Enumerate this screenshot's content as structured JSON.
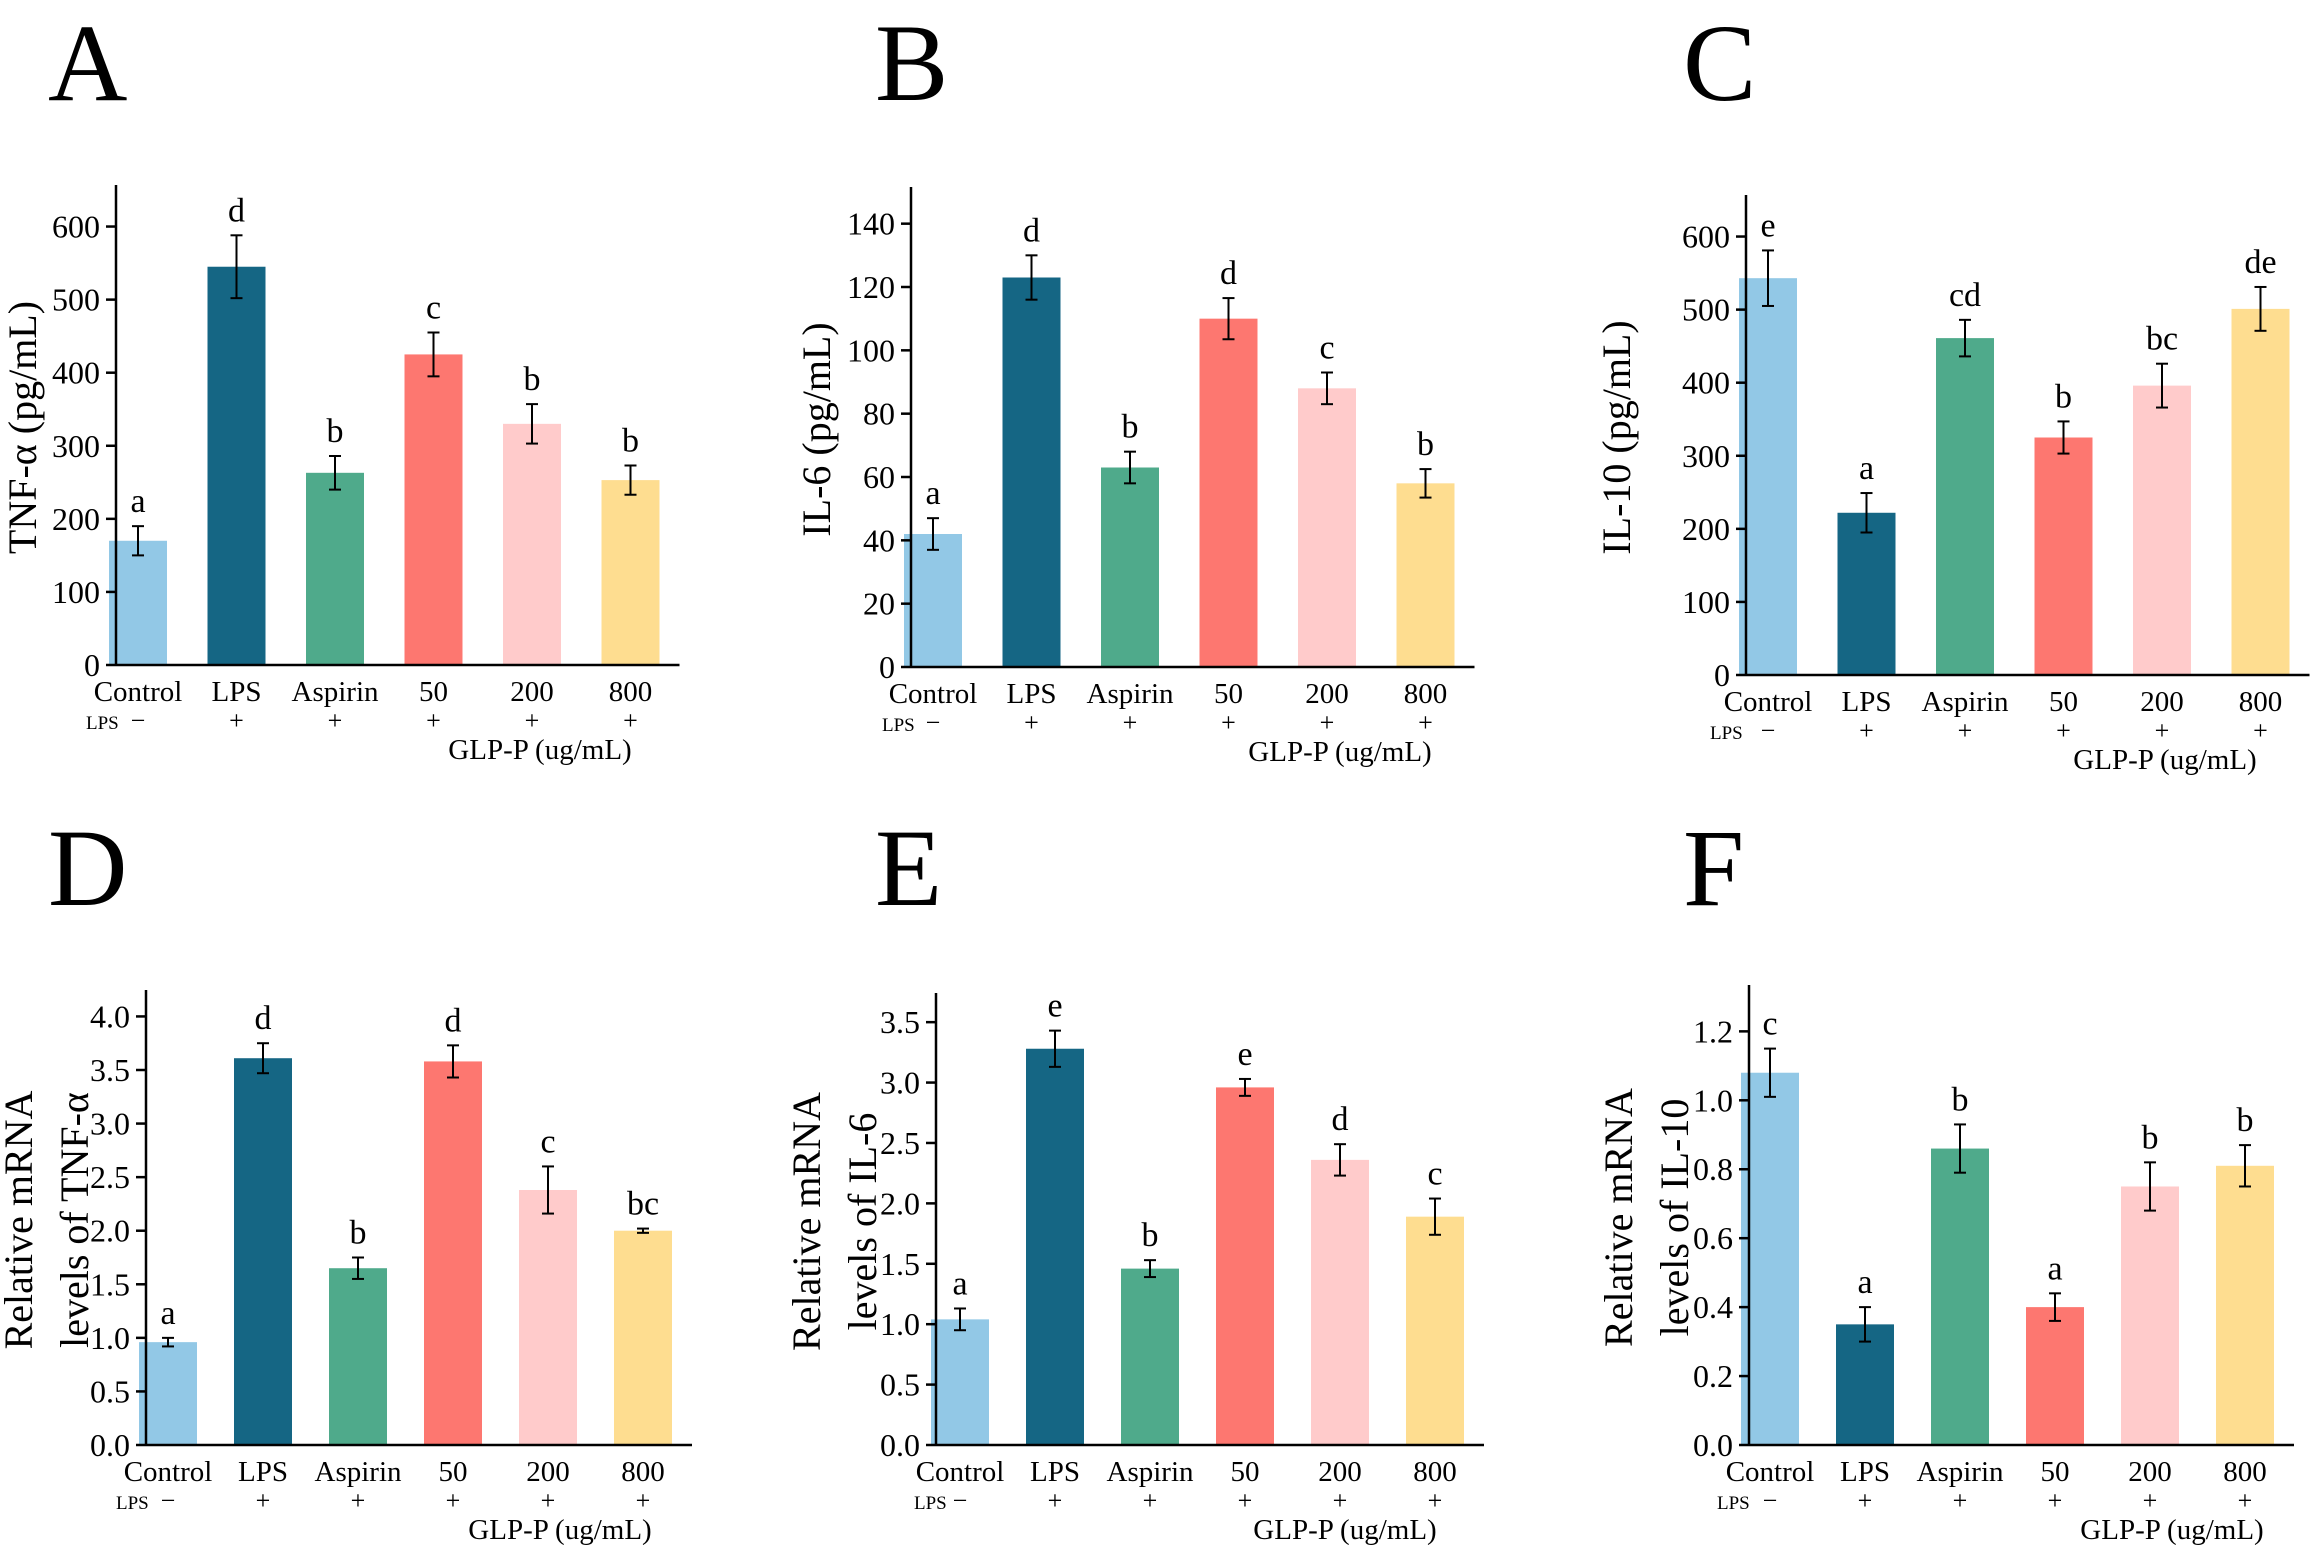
{
  "colors": [
    "#92c8e6",
    "#156684",
    "#4faa8b",
    "#fd7770",
    "#ffcbcb",
    "#fedd90"
  ],
  "chart_data": [
    {
      "panel_label": "A",
      "type": "bar",
      "categories": [
        "Control",
        "LPS",
        "Aspirin",
        "50",
        "200",
        "800"
      ],
      "values": [
        170,
        545,
        263,
        425,
        330,
        253
      ],
      "errors": [
        20,
        43,
        23,
        30,
        27,
        20
      ],
      "significance": [
        "a",
        "d",
        "b",
        "c",
        "b",
        "b"
      ],
      "ylabel_lines": [
        "TNF-α (pg/mL)"
      ],
      "ylim": [
        0,
        650
      ],
      "yticks": [
        0,
        100,
        200,
        300,
        400,
        500,
        600
      ],
      "ytick_labels": [
        "0",
        "100",
        "200",
        "300",
        "400",
        "500",
        "600"
      ],
      "lps_label": "LPS",
      "lps_row": [
        "−",
        "+",
        "+",
        "+",
        "+",
        "+"
      ],
      "xgroup_label": "GLP-P (ug/mL)"
    },
    {
      "panel_label": "B",
      "type": "bar",
      "categories": [
        "Control",
        "LPS",
        "Aspirin",
        "50",
        "200",
        "800"
      ],
      "values": [
        42,
        123,
        63,
        110,
        88,
        58
      ],
      "errors": [
        5,
        7,
        5,
        6.5,
        5,
        4.5
      ],
      "significance": [
        "a",
        "d",
        "b",
        "d",
        "c",
        "b"
      ],
      "ylabel_lines": [
        "IL-6 (pg/mL)"
      ],
      "ylim": [
        0,
        150
      ],
      "yticks": [
        0,
        20,
        40,
        60,
        80,
        100,
        120,
        140
      ],
      "ytick_labels": [
        "0",
        "20",
        "40",
        "60",
        "80",
        "100",
        "120",
        "140"
      ],
      "lps_label": "LPS",
      "lps_row": [
        "−",
        "+",
        "+",
        "+",
        "+",
        "+"
      ],
      "xgroup_label": "GLP-P (ug/mL)"
    },
    {
      "panel_label": "C",
      "type": "bar",
      "categories": [
        "Control",
        "LPS",
        "Aspirin",
        "50",
        "200",
        "800"
      ],
      "values": [
        543,
        222,
        461,
        325,
        396,
        501
      ],
      "errors": [
        38,
        27,
        25,
        22,
        30,
        30
      ],
      "significance": [
        "e",
        "a",
        "cd",
        "b",
        "bc",
        "de"
      ],
      "ylabel_lines": [
        "IL-10 (pg/mL)"
      ],
      "ylim": [
        0,
        650
      ],
      "yticks": [
        0,
        100,
        200,
        300,
        400,
        500,
        600
      ],
      "ytick_labels": [
        "0",
        "100",
        "200",
        "300",
        "400",
        "500",
        "600"
      ],
      "lps_label": "LPS",
      "lps_row": [
        "−",
        "+",
        "+",
        "+",
        "+",
        "+"
      ],
      "xgroup_label": "GLP-P (ug/mL)"
    },
    {
      "panel_label": "D",
      "type": "bar",
      "categories": [
        "Control",
        "LPS",
        "Aspirin",
        "50",
        "200",
        "800"
      ],
      "values": [
        0.96,
        3.61,
        1.65,
        3.58,
        2.38,
        2.0
      ],
      "errors": [
        0.04,
        0.14,
        0.1,
        0.15,
        0.22,
        0.02
      ],
      "significance": [
        "a",
        "d",
        "b",
        "d",
        "c",
        "bc"
      ],
      "ylabel_lines": [
        "Relative mRNA",
        "levels of TNF-α"
      ],
      "ylim": [
        0,
        4.2
      ],
      "yticks": [
        0,
        0.5,
        1,
        1.5,
        2,
        2.5,
        3,
        3.5,
        4
      ],
      "ytick_labels": [
        "0.0",
        "0.5",
        "1.0",
        "1.5",
        "2.0",
        "2.5",
        "3.0",
        "3.5",
        "4.0"
      ],
      "lps_label": "LPS",
      "lps_row": [
        "−",
        "+",
        "+",
        "+",
        "+",
        "+"
      ],
      "xgroup_label": "GLP-P (ug/mL)"
    },
    {
      "panel_label": "E",
      "type": "bar",
      "categories": [
        "Control",
        "LPS",
        "Aspirin",
        "50",
        "200",
        "800"
      ],
      "values": [
        1.04,
        3.28,
        1.46,
        2.96,
        2.36,
        1.89
      ],
      "errors": [
        0.09,
        0.15,
        0.07,
        0.07,
        0.13,
        0.15
      ],
      "significance": [
        "a",
        "e",
        "b",
        "e",
        "d",
        "c"
      ],
      "ylabel_lines": [
        "Relative mRNA",
        "levels of IL-6"
      ],
      "ylim": [
        0,
        3.7
      ],
      "yticks": [
        0,
        0.5,
        1,
        1.5,
        2,
        2.5,
        3,
        3.5
      ],
      "ytick_labels": [
        "0.0",
        "0.5",
        "1.0",
        "1.5",
        "2.0",
        "2.5",
        "3.0",
        "3.5"
      ],
      "lps_label": "LPS",
      "lps_row": [
        "−",
        "+",
        "+",
        "+",
        "+",
        "+"
      ],
      "xgroup_label": "GLP-P (ug/mL)"
    },
    {
      "panel_label": "F",
      "type": "bar",
      "categories": [
        "Control",
        "LPS",
        "Aspirin",
        "50",
        "200",
        "800"
      ],
      "values": [
        1.08,
        0.35,
        0.86,
        0.4,
        0.75,
        0.81
      ],
      "errors": [
        0.07,
        0.05,
        0.07,
        0.04,
        0.07,
        0.06
      ],
      "significance": [
        "c",
        "a",
        "b",
        "a",
        "b",
        "b"
      ],
      "ylabel_lines": [
        "Relative mRNA",
        "levels of IL-10"
      ],
      "ylim": [
        0,
        1.32
      ],
      "yticks": [
        0,
        0.2,
        0.4,
        0.6,
        0.8,
        1,
        1.2
      ],
      "ytick_labels": [
        "0.0",
        "0.2",
        "0.4",
        "0.6",
        "0.8",
        "1.0",
        "1.2"
      ],
      "lps_label": "LPS",
      "lps_row": [
        "−",
        "+",
        "+",
        "+",
        "+",
        "+"
      ],
      "xgroup_label": "GLP-P (ug/mL)"
    }
  ]
}
